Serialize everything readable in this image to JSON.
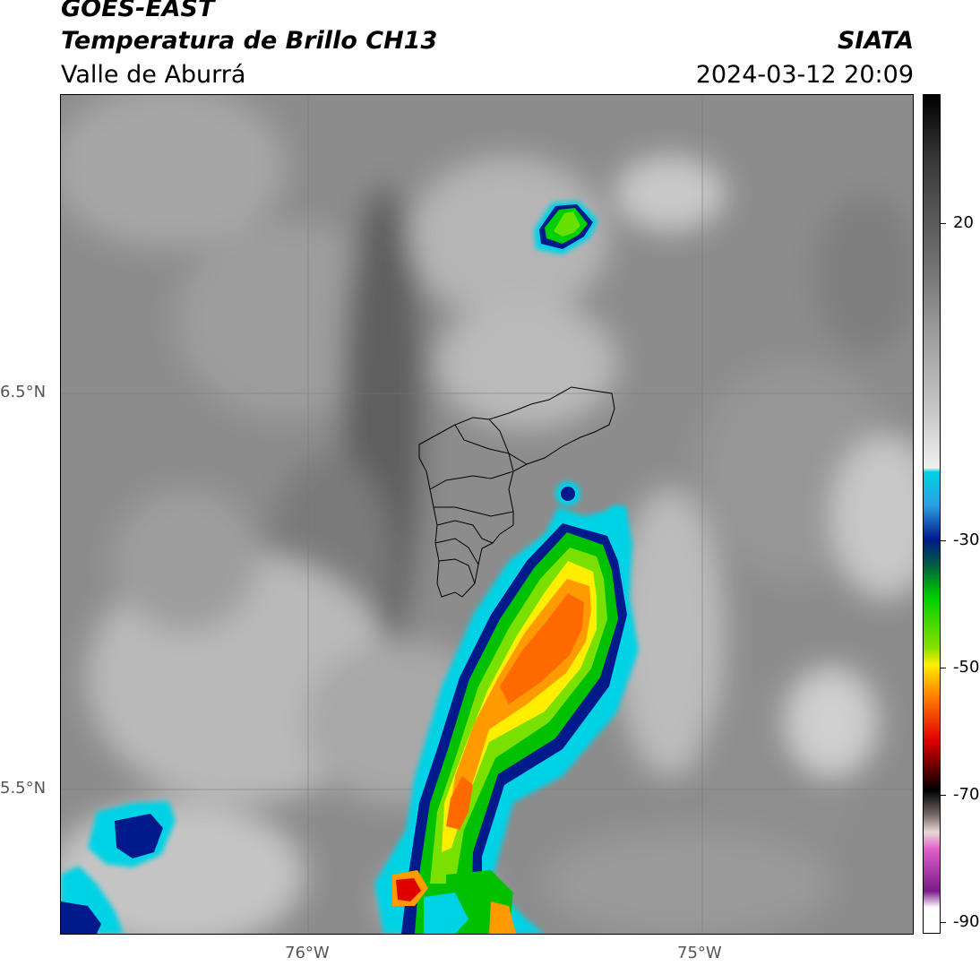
{
  "header": {
    "satellite": "GOES-EAST",
    "product": "Temperatura de Brillo CH13",
    "region": "Valle de Aburrá",
    "organization": "SIATA",
    "timestamp": "2024-03-12 20:09"
  },
  "map": {
    "graticule": {
      "lat_labels": [
        "6.5°N",
        "5.5°N"
      ],
      "lon_labels": [
        "76°W",
        "75°W"
      ]
    }
  },
  "colorbar": {
    "tick_labels": [
      "20",
      "-30",
      "-50",
      "-70",
      "-90"
    ],
    "colors": {
      "grayscale_warm": "#9a9a9a",
      "cyan": "#00d2e6",
      "dark_blue": "#001a8c",
      "green": "#00d000",
      "yellow": "#ffee00",
      "orange": "#ff7a00",
      "red": "#e00000",
      "black": "#000000",
      "magenta": "#e060c8",
      "purple": "#7a1a8a"
    }
  }
}
